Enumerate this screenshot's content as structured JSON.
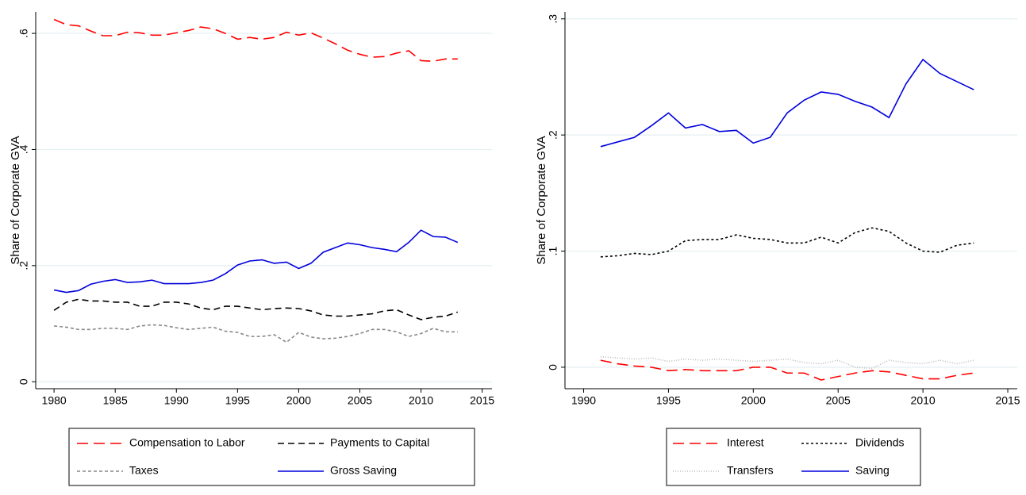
{
  "chart_data": [
    {
      "type": "line",
      "ylabel": "Share of Corporate GVA",
      "x": [
        1980,
        1981,
        1982,
        1983,
        1984,
        1985,
        1986,
        1987,
        1988,
        1989,
        1990,
        1991,
        1992,
        1993,
        1994,
        1995,
        1996,
        1997,
        1998,
        1999,
        2000,
        2001,
        2002,
        2003,
        2004,
        2005,
        2006,
        2007,
        2008,
        2009,
        2010,
        2011,
        2012,
        2013
      ],
      "xlim": [
        1978.5,
        2015.8
      ],
      "xticks": [
        1980,
        1985,
        1990,
        1995,
        2000,
        2005,
        2010,
        2015
      ],
      "ylim": [
        -0.012,
        0.637
      ],
      "yticks": [
        0,
        {
          "value": 0.2,
          "label": ".2"
        },
        {
          "value": 0.4,
          "label": ".4"
        },
        {
          "value": 0.6,
          "label": ".6"
        }
      ],
      "grid": true,
      "series": [
        {
          "name": "Compensation to Labor",
          "color": "#ff0000",
          "dash": "long-dash",
          "values": [
            0.624,
            0.615,
            0.613,
            0.604,
            0.596,
            0.596,
            0.602,
            0.601,
            0.597,
            0.597,
            0.601,
            0.605,
            0.611,
            0.608,
            0.6,
            0.59,
            0.593,
            0.59,
            0.593,
            0.602,
            0.597,
            0.601,
            0.592,
            0.582,
            0.571,
            0.564,
            0.559,
            0.56,
            0.566,
            0.57,
            0.553,
            0.552,
            0.556,
            0.556
          ]
        },
        {
          "name": "Payments to Capital",
          "color": "#000000",
          "dash": "dash",
          "values": [
            0.123,
            0.137,
            0.142,
            0.139,
            0.139,
            0.137,
            0.137,
            0.13,
            0.13,
            0.137,
            0.137,
            0.134,
            0.127,
            0.124,
            0.13,
            0.13,
            0.127,
            0.124,
            0.126,
            0.127,
            0.126,
            0.122,
            0.115,
            0.113,
            0.113,
            0.115,
            0.117,
            0.122,
            0.124,
            0.115,
            0.107,
            0.111,
            0.113,
            0.12
          ]
        },
        {
          "name": "Taxes",
          "color": "#888888",
          "dash": "short-dash",
          "values": [
            0.096,
            0.094,
            0.09,
            0.09,
            0.092,
            0.092,
            0.09,
            0.096,
            0.098,
            0.097,
            0.093,
            0.09,
            0.092,
            0.094,
            0.087,
            0.085,
            0.078,
            0.078,
            0.081,
            0.068,
            0.085,
            0.077,
            0.074,
            0.075,
            0.078,
            0.083,
            0.09,
            0.09,
            0.086,
            0.078,
            0.083,
            0.092,
            0.086,
            0.086
          ]
        },
        {
          "name": "Gross Saving",
          "color": "#0000dd",
          "dash": "solid",
          "values": [
            0.158,
            0.154,
            0.157,
            0.168,
            0.173,
            0.176,
            0.171,
            0.172,
            0.175,
            0.169,
            0.169,
            0.169,
            0.171,
            0.175,
            0.186,
            0.201,
            0.208,
            0.21,
            0.204,
            0.206,
            0.195,
            0.204,
            0.223,
            0.231,
            0.239,
            0.236,
            0.231,
            0.228,
            0.224,
            0.24,
            0.261,
            0.25,
            0.249,
            0.24
          ]
        }
      ]
    },
    {
      "type": "line",
      "ylabel": "Share of Corporate GVA",
      "x": [
        1991,
        1992,
        1993,
        1994,
        1995,
        1996,
        1997,
        1998,
        1999,
        2000,
        2001,
        2002,
        2003,
        2004,
        2005,
        2006,
        2007,
        2008,
        2009,
        2010,
        2011,
        2012,
        2013
      ],
      "xlim": [
        1988.9,
        2015.56
      ],
      "xticks": [
        1990,
        1995,
        2000,
        2005,
        2010,
        2015
      ],
      "ylim": [
        -0.0185,
        0.306
      ],
      "yticks": [
        0,
        {
          "value": 0.1,
          "label": ".1"
        },
        {
          "value": 0.2,
          "label": ".2"
        },
        {
          "value": 0.3,
          "label": ".3"
        }
      ],
      "grid": true,
      "series": [
        {
          "name": "Interest",
          "color": "#ff0000",
          "dash": "long-dash",
          "values": [
            0.006,
            0.003,
            0.001,
            0,
            -0.003,
            -0.002,
            -0.003,
            -0.003,
            -0.003,
            0,
            0,
            -0.005,
            -0.005,
            -0.011,
            -0.008,
            -0.005,
            -0.003,
            -0.004,
            -0.007,
            -0.01,
            -0.01,
            -0.007,
            -0.005
          ]
        },
        {
          "name": "Dividends",
          "color": "#000000",
          "dash": "dot",
          "values": [
            0.095,
            0.096,
            0.098,
            0.097,
            0.1,
            0.109,
            0.11,
            0.11,
            0.114,
            0.111,
            0.11,
            0.107,
            0.107,
            0.112,
            0.107,
            0.116,
            0.12,
            0.117,
            0.107,
            0.1,
            0.099,
            0.105,
            0.107
          ]
        },
        {
          "name": "Transfers",
          "color": "#bbbbbb",
          "dash": "fine-dot",
          "values": [
            0.009,
            0.008,
            0.007,
            0.008,
            0.005,
            0.007,
            0.006,
            0.007,
            0.006,
            0.005,
            0.006,
            0.007,
            0.004,
            0.003,
            0.006,
            0.0,
            -0.001,
            0.006,
            0.004,
            0.003,
            0.006,
            0.003,
            0.006
          ]
        },
        {
          "name": "Saving",
          "color": "#0000dd",
          "dash": "solid",
          "values": [
            0.19,
            0.194,
            0.198,
            0.208,
            0.219,
            0.206,
            0.209,
            0.203,
            0.204,
            0.193,
            0.198,
            0.219,
            0.23,
            0.237,
            0.235,
            0.229,
            0.224,
            0.215,
            0.244,
            0.265,
            0.253,
            0.246,
            0.239
          ]
        }
      ]
    }
  ]
}
